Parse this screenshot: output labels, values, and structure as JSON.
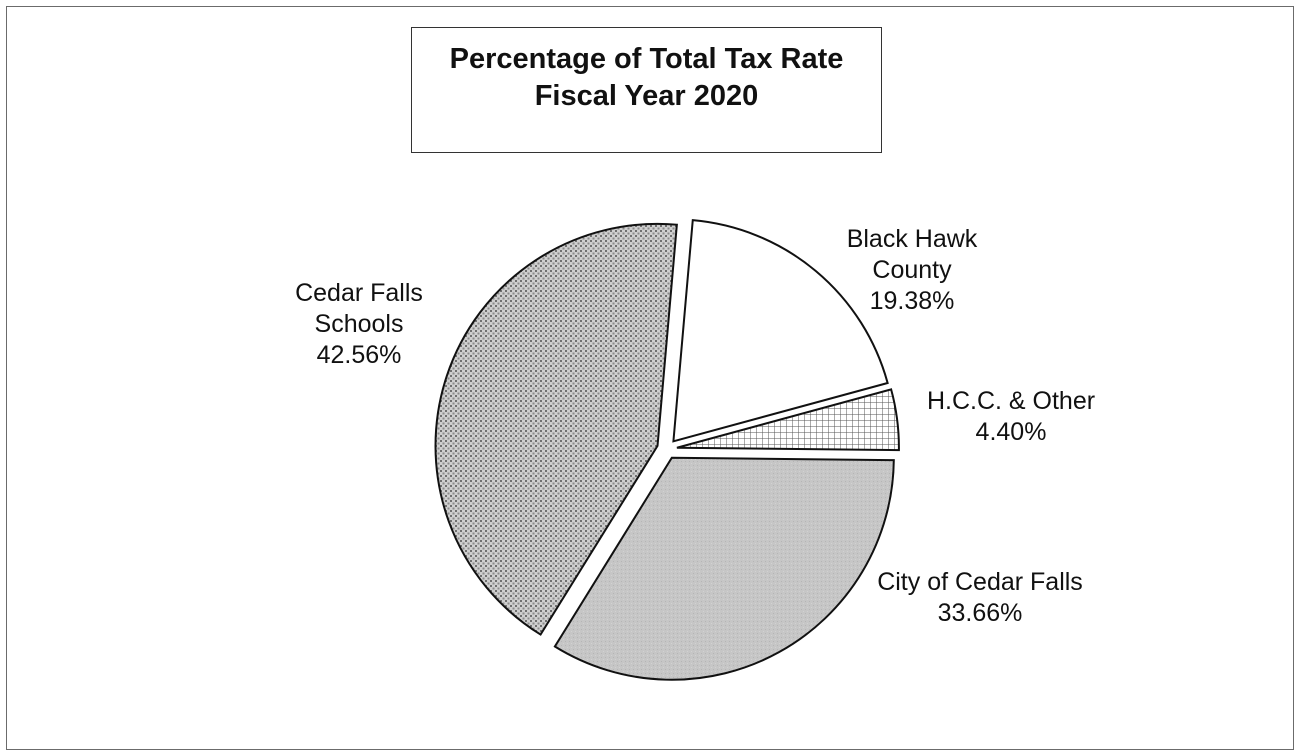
{
  "chart_data": {
    "type": "pie",
    "title": [
      "Percentage of Total Tax Rate",
      "Fiscal Year 2020"
    ],
    "slices": [
      {
        "name": "Black Hawk County",
        "label_lines": [
          "Black Hawk",
          "County"
        ],
        "value": 19.38,
        "value_label": "19.38%",
        "fill": "#ffffff",
        "pattern": "none"
      },
      {
        "name": "H.C.C. & Other",
        "label_lines": [
          "H.C.C. & Other"
        ],
        "value": 4.4,
        "value_label": "4.40%",
        "fill": "#ffffff",
        "pattern": "grid"
      },
      {
        "name": "City of Cedar Falls",
        "label_lines": [
          "City of Cedar Falls"
        ],
        "value": 33.66,
        "value_label": "33.66%",
        "fill": "#c4c4c4",
        "pattern": "solid-gray"
      },
      {
        "name": "Cedar Falls Schools",
        "label_lines": [
          "Cedar Falls",
          "Schools"
        ],
        "value": 42.56,
        "value_label": "42.56%",
        "fill": "#bdbdbd",
        "pattern": "dots"
      }
    ]
  }
}
